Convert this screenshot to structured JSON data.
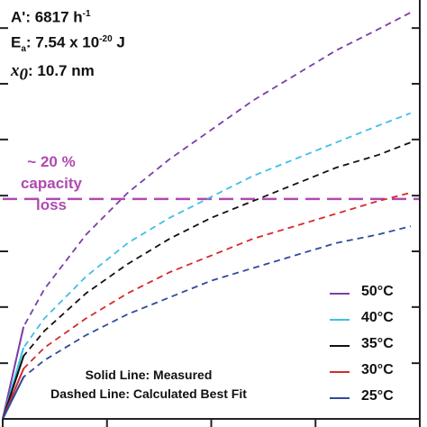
{
  "params": {
    "a_prefix": "A':",
    "a_value": "6817 h",
    "a_exp": "-1",
    "ea_prefix": "E",
    "ea_sub": "a",
    "ea_colon": ":",
    "ea_value": "7.54 x 10",
    "ea_exp": "-20",
    "ea_unit": " J",
    "x0_var": "x",
    "x0_sub": "0",
    "x0_colon": ":",
    "x0_value": "10.7 nm"
  },
  "capacity_label": {
    "line1": "~ 20 %",
    "line2": "capacity",
    "line3": "loss"
  },
  "notes": {
    "solid": "Solid Line: Measured",
    "dashed": "Dashed Line: Calculated Best Fit"
  },
  "colors": {
    "threshold": "#b04ab0",
    "c50": "#7b3fa8",
    "c40": "#3fbfe8",
    "c35": "#111111",
    "c30": "#d42a2a",
    "c25": "#2f4a9c",
    "axis": "#222222"
  },
  "chart_data": {
    "type": "line",
    "x_axis": {
      "range": [
        0,
        1
      ],
      "tick_labels": [],
      "ticks": [
        0,
        0.25,
        0.5,
        0.75,
        1.0
      ]
    },
    "y_axis": {
      "range": [
        0,
        1
      ],
      "tick_labels": [],
      "ticks": [
        0.133,
        0.267,
        0.4,
        0.533,
        0.667,
        0.8,
        0.933
      ]
    },
    "threshold": {
      "y": 0.525,
      "style": "dashed"
    },
    "series": [
      {
        "name": "50°C",
        "color_key": "c50",
        "style": "dashed",
        "x": [
          0,
          0.05,
          0.1,
          0.2,
          0.3,
          0.4,
          0.5,
          0.6,
          0.7,
          0.8,
          0.9,
          0.978
        ],
        "y": [
          0.0,
          0.22,
          0.31,
          0.44,
          0.54,
          0.62,
          0.69,
          0.76,
          0.82,
          0.88,
          0.93,
          0.97
        ]
      },
      {
        "name": "40°C",
        "color_key": "c40",
        "style": "dashed",
        "x": [
          0,
          0.05,
          0.1,
          0.2,
          0.3,
          0.4,
          0.5,
          0.6,
          0.7,
          0.8,
          0.9,
          0.978
        ],
        "y": [
          0.0,
          0.17,
          0.24,
          0.34,
          0.42,
          0.48,
          0.53,
          0.58,
          0.62,
          0.66,
          0.7,
          0.73
        ]
      },
      {
        "name": "35°C",
        "color_key": "c35",
        "style": "dashed",
        "x": [
          0,
          0.05,
          0.1,
          0.2,
          0.3,
          0.4,
          0.5,
          0.6,
          0.7,
          0.8,
          0.9,
          0.978
        ],
        "y": [
          0.0,
          0.15,
          0.21,
          0.3,
          0.37,
          0.43,
          0.48,
          0.52,
          0.56,
          0.6,
          0.63,
          0.66
        ]
      },
      {
        "name": "30°C",
        "color_key": "c30",
        "style": "dashed",
        "x": [
          0,
          0.05,
          0.1,
          0.2,
          0.3,
          0.4,
          0.5,
          0.6,
          0.7,
          0.8,
          0.9,
          0.978
        ],
        "y": [
          0.0,
          0.12,
          0.17,
          0.24,
          0.3,
          0.35,
          0.39,
          0.43,
          0.46,
          0.49,
          0.52,
          0.54
        ]
      },
      {
        "name": "25°C",
        "color_key": "c25",
        "style": "dashed",
        "x": [
          0,
          0.05,
          0.1,
          0.2,
          0.3,
          0.4,
          0.5,
          0.6,
          0.7,
          0.8,
          0.9,
          0.978
        ],
        "y": [
          0.0,
          0.1,
          0.14,
          0.2,
          0.25,
          0.29,
          0.33,
          0.36,
          0.39,
          0.42,
          0.44,
          0.46
        ]
      }
    ]
  }
}
